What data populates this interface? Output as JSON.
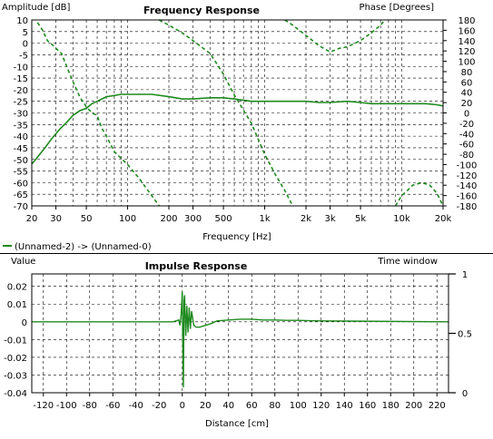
{
  "colors": {
    "trace": "#1e8a1e",
    "grid": "#000000",
    "background": "#ffffff"
  },
  "legend_text": "(Unnamed-2) -> (Unnamed-0)",
  "chart_data": [
    {
      "type": "line",
      "title": "Frequency Response",
      "ylabel": "Amplitude [dB]",
      "y2label": "Phase [Degrees]",
      "xlabel": "Frequency [Hz]",
      "xscale": "log",
      "xlim": [
        20,
        20000
      ],
      "ylim": [
        -70,
        10
      ],
      "y2lim": [
        -180,
        180
      ],
      "x_ticks": [
        {
          "v": 20,
          "t": "20"
        },
        {
          "v": 30,
          "t": "30"
        },
        {
          "v": 50,
          "t": "50"
        },
        {
          "v": 100,
          "t": "100"
        },
        {
          "v": 200,
          "t": "200"
        },
        {
          "v": 300,
          "t": "300"
        },
        {
          "v": 500,
          "t": "500"
        },
        {
          "v": 1000,
          "t": "1k"
        },
        {
          "v": 2000,
          "t": "2k"
        },
        {
          "v": 3000,
          "t": "3k"
        },
        {
          "v": 5000,
          "t": "5k"
        },
        {
          "v": 10000,
          "t": "10k"
        },
        {
          "v": 20000,
          "t": "20k"
        }
      ],
      "y_ticks": [
        10,
        5,
        0,
        -5,
        -10,
        -15,
        -20,
        -25,
        -30,
        -35,
        -40,
        -45,
        -50,
        -55,
        -60,
        -65,
        -70
      ],
      "y2_ticks": [
        180,
        160,
        140,
        120,
        100,
        80,
        60,
        40,
        20,
        0,
        -20,
        -40,
        -60,
        -80,
        -100,
        -120,
        -140,
        -160,
        -180
      ],
      "grid": true,
      "series": [
        {
          "id": "magnitude",
          "style": "solid",
          "axis": "left",
          "x": [
            20,
            22,
            25,
            28,
            32,
            36,
            40,
            45,
            50,
            55,
            60,
            65,
            70,
            80,
            90,
            100,
            120,
            150,
            200,
            250,
            300,
            400,
            500,
            600,
            800,
            1000,
            1500,
            2000,
            2500,
            3000,
            4000,
            5000,
            6000,
            7000,
            8000,
            10000,
            12000,
            15000,
            18000,
            20000
          ],
          "y": [
            -52,
            -49,
            -45,
            -41,
            -37,
            -34,
            -31,
            -29,
            -28,
            -26,
            -25,
            -24,
            -23,
            -22.5,
            -22,
            -22,
            -22,
            -22,
            -23,
            -24,
            -24,
            -23.5,
            -23.5,
            -24,
            -25,
            -25,
            -25,
            -25,
            -25.5,
            -25.5,
            -25,
            -25.5,
            -26,
            -26,
            -26,
            -26,
            -26,
            -26,
            -26.5,
            -27
          ]
        },
        {
          "id": "phase",
          "style": "dashed",
          "axis": "right",
          "segments": [
            {
              "x": [
                22,
                24,
                26,
                28,
                30,
                33,
                36,
                40,
                45,
                50,
                55,
                60,
                65,
                70,
                80,
                100,
                120,
                150,
                170
              ],
              "y": [
                175,
                160,
                140,
                133,
                125,
                115,
                90,
                60,
                30,
                12,
                0,
                -5,
                -30,
                -45,
                -75,
                -100,
                -125,
                -160,
                -180
              ]
            },
            {
              "x": [
                170,
                200,
                250,
                300,
                400,
                500,
                600,
                800,
                1000,
                1200,
                1400,
                1600
              ],
              "y": [
                180,
                170,
                155,
                140,
                115,
                75,
                35,
                -20,
                -80,
                -120,
                -150,
                -180
              ]
            },
            {
              "x": [
                1400,
                1600,
                2000,
                2500,
                3000,
                3500,
                4000,
                5000,
                6000,
                7000,
                7500
              ],
              "y": [
                180,
                170,
                150,
                130,
                118,
                125,
                128,
                140,
                155,
                170,
                180
              ]
            },
            {
              "x": [
                9000,
                10000,
                11000,
                12000,
                14000,
                16000,
                18000,
                20000
              ],
              "y": [
                -180,
                -160,
                -150,
                -140,
                -135,
                -140,
                -155,
                -180
              ]
            }
          ]
        }
      ]
    },
    {
      "type": "line",
      "title": "Impulse Response",
      "ylabel": "Value",
      "y2label": "Time window",
      "xlabel": "Distance [cm]",
      "xlim": [
        -130,
        230
      ],
      "ylim": [
        -0.04,
        0.027
      ],
      "y2lim": [
        0,
        1
      ],
      "x_ticks": [
        -120,
        -100,
        -80,
        -60,
        -40,
        -20,
        0,
        20,
        40,
        60,
        80,
        100,
        120,
        140,
        160,
        180,
        200,
        220
      ],
      "y_ticks": [
        {
          "v": 0.02,
          "t": "0.02"
        },
        {
          "v": 0.01,
          "t": "0.01"
        },
        {
          "v": 0,
          "t": "0"
        },
        {
          "v": -0.01,
          "t": "-0.01"
        },
        {
          "v": -0.02,
          "t": "-0.02"
        },
        {
          "v": -0.03,
          "t": "-0.03"
        },
        {
          "v": -0.04,
          "t": "-0.04"
        }
      ],
      "y2_ticks": [
        {
          "v": 1,
          "t": "1"
        },
        {
          "v": 0.5,
          "t": "0.5"
        },
        {
          "v": 0,
          "t": "0"
        }
      ],
      "grid": true,
      "series": [
        {
          "id": "impulse",
          "style": "solid",
          "x": [
            -130,
            -8,
            -3,
            -2,
            -1,
            0,
            0.5,
            1,
            1.5,
            2,
            3,
            4,
            5,
            6,
            7,
            8,
            10,
            12,
            15,
            20,
            25,
            30,
            40,
            50,
            60,
            70,
            80,
            90,
            100,
            110,
            120,
            230
          ],
          "y": [
            0,
            0,
            0.001,
            -0.002,
            0.004,
            0.017,
            -0.018,
            -0.037,
            0.012,
            0.015,
            -0.008,
            0.009,
            -0.006,
            0.008,
            -0.004,
            0.006,
            -0.002,
            -0.003,
            -0.003,
            -0.002,
            -0.001,
            0.0005,
            0.001,
            0.0015,
            0.0015,
            0.001,
            0.001,
            0.0008,
            0.0008,
            0.0006,
            0.0005,
            0
          ]
        }
      ]
    }
  ]
}
